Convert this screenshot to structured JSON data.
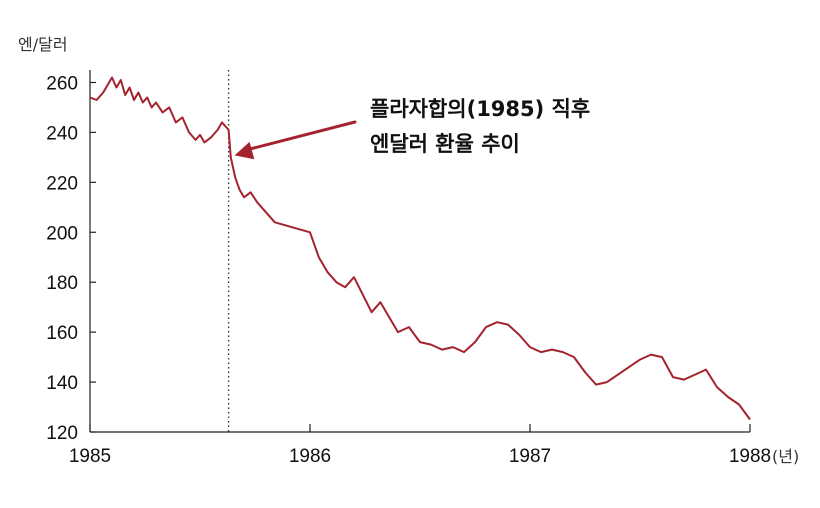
{
  "chart_data": {
    "type": "line",
    "ylabel": "엔/달러",
    "x_unit": "(년)",
    "ylim": [
      120,
      265
    ],
    "xlim": [
      1985.0,
      1988.0
    ],
    "y_ticks": [
      "260",
      "240",
      "220",
      "200",
      "180",
      "160",
      "140",
      "120"
    ],
    "x_ticks": [
      "1985",
      "1986",
      "1987",
      "1988"
    ],
    "annotation": {
      "lines": [
        "플라자합의(1985) 직후",
        "엔달러 환율 추이"
      ],
      "event_x": 1985.63
    },
    "line_color": "#a3232e",
    "series": [
      {
        "x": [
          1985.0,
          1985.03,
          1985.06,
          1985.08,
          1985.1,
          1985.12,
          1985.14,
          1985.16,
          1985.18,
          1985.2,
          1985.22,
          1985.24,
          1985.26,
          1985.28,
          1985.3,
          1985.33,
          1985.36,
          1985.39,
          1985.42,
          1985.45,
          1985.48,
          1985.5,
          1985.52,
          1985.55,
          1985.58,
          1985.6,
          1985.62,
          1985.63,
          1985.64,
          1985.66,
          1985.68,
          1985.7,
          1985.73,
          1985.76,
          1985.8,
          1985.84,
          1985.88,
          1985.92,
          1985.96,
          1986.0,
          1986.04,
          1986.08,
          1986.12,
          1986.16,
          1986.2,
          1986.24,
          1986.28,
          1986.32,
          1986.36,
          1986.4,
          1986.45,
          1986.5,
          1986.55,
          1986.6,
          1986.65,
          1986.7,
          1986.75,
          1986.8,
          1986.85,
          1986.9,
          1986.95,
          1987.0,
          1987.05,
          1987.1,
          1987.15,
          1987.2,
          1987.25,
          1987.3,
          1987.35,
          1987.4,
          1987.45,
          1987.5,
          1987.55,
          1987.6,
          1987.65,
          1987.7,
          1987.75,
          1987.8,
          1987.85,
          1987.9,
          1987.95,
          1988.0
        ],
        "y": [
          254,
          253,
          256,
          259,
          262,
          258,
          261,
          255,
          258,
          253,
          256,
          252,
          254,
          250,
          252,
          248,
          250,
          244,
          246,
          240,
          237,
          239,
          236,
          238,
          241,
          244,
          242,
          241,
          230,
          222,
          217,
          214,
          216,
          212,
          208,
          204,
          203,
          202,
          201,
          200,
          190,
          184,
          180,
          178,
          182,
          175,
          168,
          172,
          166,
          160,
          162,
          156,
          155,
          153,
          154,
          152,
          156,
          162,
          164,
          163,
          159,
          154,
          152,
          153,
          152,
          150,
          144,
          139,
          140,
          143,
          146,
          149,
          151,
          150,
          142,
          141,
          143,
          145,
          138,
          134,
          131,
          125
        ]
      }
    ]
  }
}
